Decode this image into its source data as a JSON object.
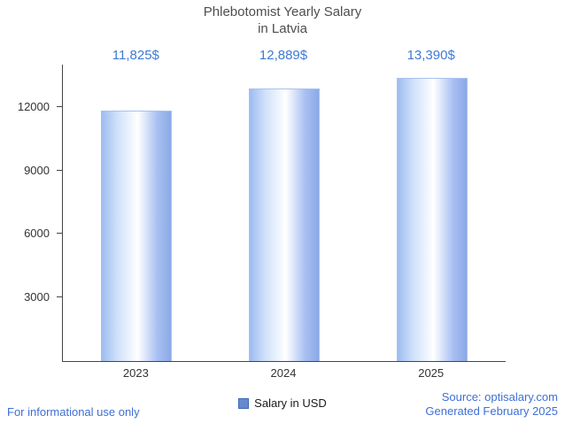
{
  "title": {
    "line1": "Phlebotomist Yearly Salary",
    "line2": "in Latvia"
  },
  "legend": {
    "label": "Salary in USD",
    "swatch_color": "#6889d2"
  },
  "footer": {
    "note": "For informational use only",
    "source_line1": "Source: optisalary.com",
    "source_line2": "Generated February 2025"
  },
  "colors": {
    "value_label_text": "#3e79d6",
    "footer_text": "#3e6fd6",
    "axis": "#444444",
    "bar_gradient_left": "#9dbcf0",
    "bar_gradient_center": "#ffffff",
    "bar_gradient_right": "#8ba9e6"
  },
  "chart_data": {
    "type": "bar",
    "title": "Phlebotomist Yearly Salary in Latvia",
    "categories": [
      "2023",
      "2024",
      "2025"
    ],
    "values": [
      11825,
      12889,
      13390
    ],
    "value_labels": [
      "11,825$",
      "12,889$",
      "13,390$"
    ],
    "series_name": "Salary in USD",
    "xlabel": "",
    "ylabel": "",
    "ylim": [
      0,
      14000
    ],
    "yticks": [
      3000,
      6000,
      9000,
      12000
    ],
    "grid": false,
    "legend_position": "bottom"
  }
}
